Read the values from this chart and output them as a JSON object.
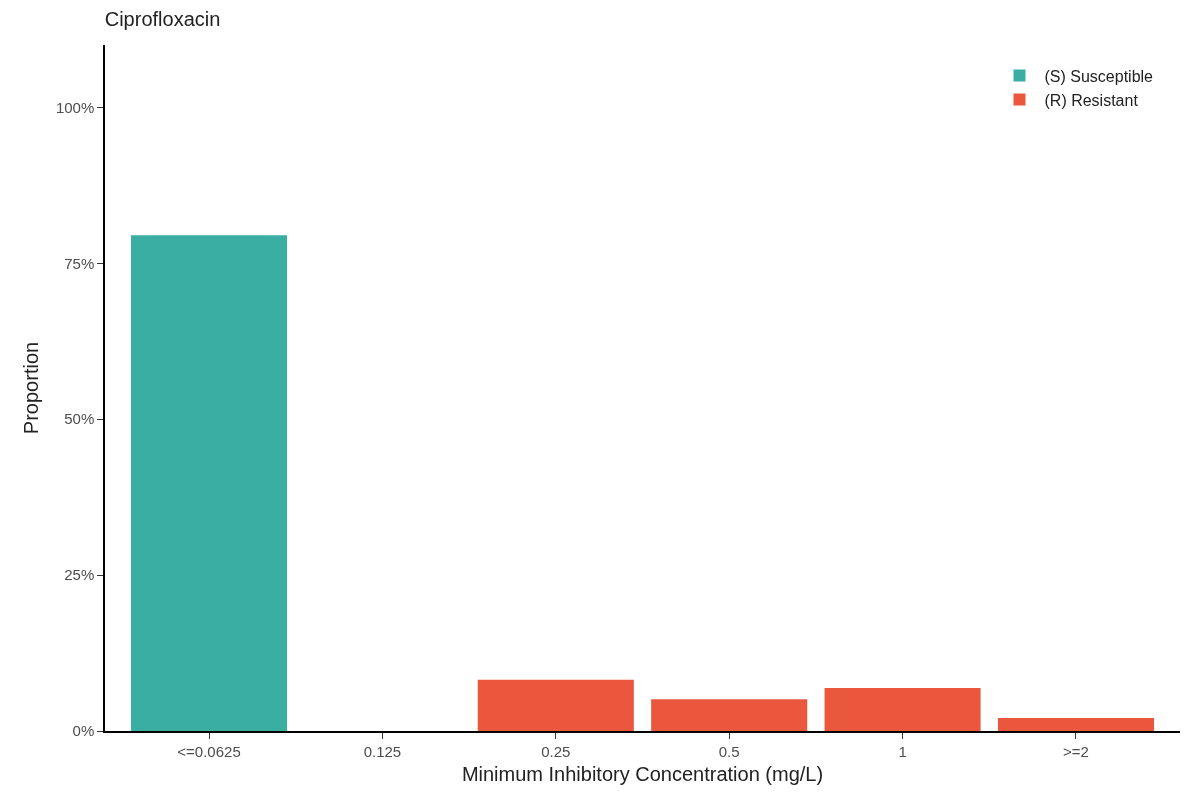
{
  "chart_data": {
    "type": "bar",
    "title": "Ciprofloxacin",
    "xlabel": "Minimum Inhibitory Concentration (mg/L)",
    "ylabel": "Proportion",
    "categories": [
      "<=0.0625",
      "0.125",
      "0.25",
      "0.5",
      "1",
      ">=2"
    ],
    "series": [
      {
        "name": "(S) Susceptible",
        "color": "#3aaea3",
        "values": [
          79.5,
          null,
          null,
          null,
          null,
          null
        ]
      },
      {
        "name": "(R) Resistant",
        "color": "#ea573d",
        "values": [
          null,
          null,
          8.2,
          5.1,
          6.9,
          2.1
        ]
      }
    ],
    "ylim": [
      0,
      110
    ],
    "yticks": [
      {
        "value": 0,
        "label": "0%"
      },
      {
        "value": 25,
        "label": "25%"
      },
      {
        "value": 50,
        "label": "50%"
      },
      {
        "value": 75,
        "label": "75%"
      },
      {
        "value": 100,
        "label": "100%"
      }
    ],
    "grid": false,
    "legend": "top right"
  }
}
